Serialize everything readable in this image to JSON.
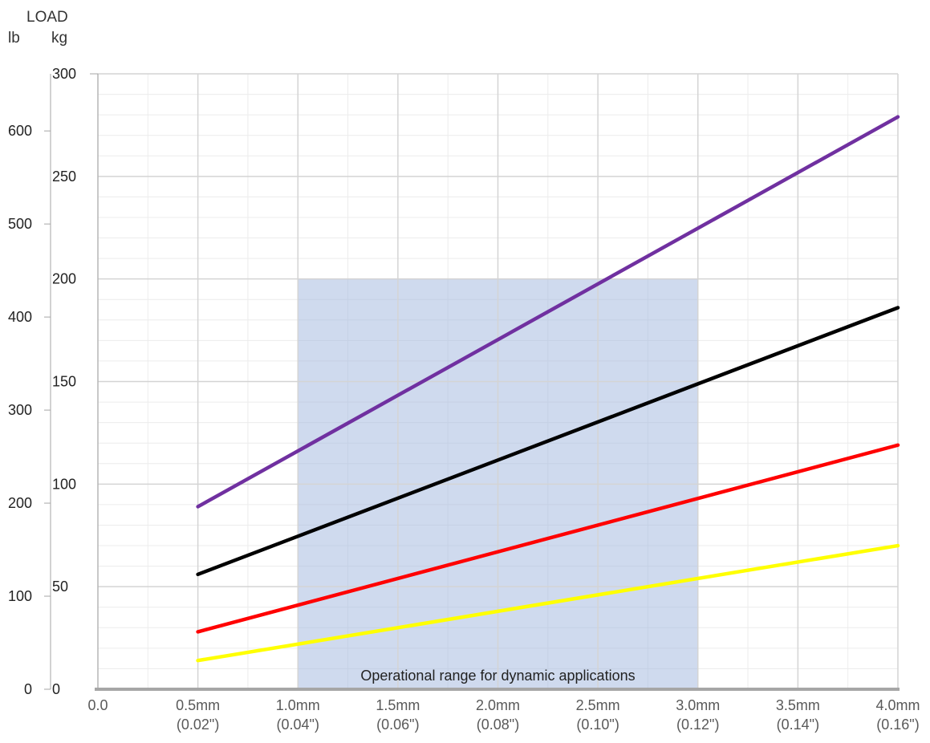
{
  "chart_data": {
    "type": "line",
    "title": "",
    "y_axis_title": "LOAD",
    "y_unit_lb": "lb",
    "y_unit_kg": "kg",
    "x_tick_labels": [
      {
        "x": 0.0,
        "line1": "0.0",
        "line2": ""
      },
      {
        "x": 0.5,
        "line1": "0.5mm",
        "line2": "(0.02\")"
      },
      {
        "x": 1.0,
        "line1": "1.0mm",
        "line2": "(0.04\")"
      },
      {
        "x": 1.5,
        "line1": "1.5mm",
        "line2": "(0.06\")"
      },
      {
        "x": 2.0,
        "line1": "2.0mm",
        "line2": "(0.08\")"
      },
      {
        "x": 2.5,
        "line1": "2.5mm",
        "line2": "(0.10\")"
      },
      {
        "x": 3.0,
        "line1": "3.0mm",
        "line2": "(0.12\")"
      },
      {
        "x": 3.5,
        "line1": "3.5mm",
        "line2": "(0.14\")"
      },
      {
        "x": 4.0,
        "line1": "4.0mm",
        "line2": "(0.16\")"
      }
    ],
    "xlim": [
      0,
      4
    ],
    "kg_ticks": [
      "0",
      "50",
      "100",
      "150",
      "200",
      "250",
      "300"
    ],
    "kg_tick_values": [
      0,
      50,
      100,
      150,
      200,
      250,
      300
    ],
    "lb_ticks": [
      "0",
      "100",
      "200",
      "300",
      "400",
      "500",
      "600"
    ],
    "lb_tick_values": [
      0,
      100,
      200,
      300,
      400,
      500,
      600
    ],
    "ylim_kg": [
      0,
      300
    ],
    "kg_to_lb": 2.2046,
    "grid": true,
    "operational_range": {
      "label": "Operational range for dynamic applications",
      "x_start": 1.0,
      "x_end": 3.0,
      "y_top_kg": 200
    },
    "series": [
      {
        "color": "#7030a0",
        "x": [
          0.5,
          4.0
        ],
        "y": [
          89,
          279
        ]
      },
      {
        "color": "#000000",
        "x": [
          0.5,
          4.0
        ],
        "y": [
          56,
          186
        ]
      },
      {
        "color": "#ff0000",
        "x": [
          0.5,
          4.0
        ],
        "y": [
          28,
          119
        ]
      },
      {
        "color": "#ffff00",
        "x": [
          0.5,
          4.0
        ],
        "y": [
          14,
          70
        ]
      }
    ]
  }
}
